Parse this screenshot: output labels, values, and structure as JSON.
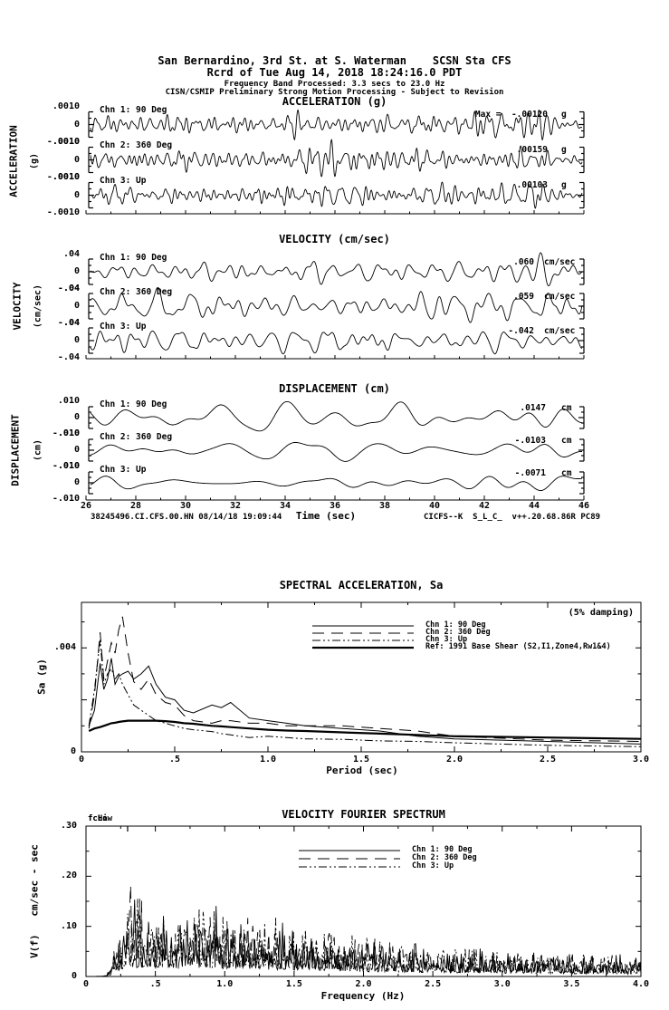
{
  "header": {
    "line1": "San Bernardino, 3rd St. at S. Waterman    SCSN Sta CFS",
    "line2": "Rcrd of Tue Aug 14, 2018 18:24:16.0 PDT",
    "line3": "Frequency Band Processed: 3.3 secs to 23.0 Hz",
    "line4": "CISN/CSMIP Preliminary Strong Motion Processing - Subject to Revision"
  },
  "time_history": {
    "panels": [
      {
        "title": "ACCELERATION (g)",
        "side_label": "ACCELERATION",
        "side_units": "(g)",
        "yticks": {
          "top": ".0010",
          "zero": "0",
          "bottom": "-.0010"
        },
        "channels": [
          {
            "label": "Chn 1: 90 Deg",
            "max": "Max =  -.00120",
            "units": "g"
          },
          {
            "label": "Chn 2: 360 Deg",
            "max": ".00159",
            "units": "g"
          },
          {
            "label": "Chn 3: Up",
            "max": ".00103",
            "units": "g"
          }
        ]
      },
      {
        "title": "VELOCITY (cm/sec)",
        "side_label": "VELOCITY",
        "side_units": "(cm/sec)",
        "yticks": {
          "top": ".04",
          "zero": "0",
          "bottom": "-.04"
        },
        "channels": [
          {
            "label": "Chn 1: 90 Deg",
            "max": ".060",
            "units": "cm/sec"
          },
          {
            "label": "Chn 2: 360 Deg",
            "max": ".059",
            "units": "cm/sec"
          },
          {
            "label": "Chn 3: Up",
            "max": "-.042",
            "units": "cm/sec"
          }
        ]
      },
      {
        "title": "DISPLACEMENT (cm)",
        "side_label": "DISPLACEMENT",
        "side_units": "(cm)",
        "yticks": {
          "top": ".010",
          "zero": "0",
          "bottom": "-.010"
        },
        "channels": [
          {
            "label": "Chn 1: 90 Deg",
            "max": ".0147",
            "units": "cm"
          },
          {
            "label": "Chn 2: 360 Deg",
            "max": "-.0103",
            "units": "cm"
          },
          {
            "label": "Chn 3: Up",
            "max": "-.0071",
            "units": "cm"
          }
        ]
      }
    ],
    "xticks": [
      "26",
      "28",
      "30",
      "32",
      "34",
      "36",
      "38",
      "40",
      "42",
      "44",
      "46"
    ],
    "xlabel": "Time (sec)",
    "footer_left": "38245496.CI.CFS.00.HN 08/14/18 19:09:44",
    "footer_right": "CICFS--K  S_L_C_  v++.20.68.86R PC89"
  },
  "sa_plot": {
    "title": "SPECTRAL ACCELERATION, Sa",
    "damping": "(5% damping)",
    "ylabel": "Sa (g)",
    "xlabel": "Period (sec)",
    "yticks": [
      {
        "v": 0.004,
        "label": ".004"
      },
      {
        "v": 0,
        "label": "0"
      }
    ],
    "xticks": [
      {
        "v": 0,
        "label": "0"
      },
      {
        "v": 0.5,
        "label": ".5"
      },
      {
        "v": 1,
        "label": "1.0"
      },
      {
        "v": 1.5,
        "label": "1.5"
      },
      {
        "v": 2,
        "label": "2.0"
      },
      {
        "v": 2.5,
        "label": "2.5"
      },
      {
        "v": 3,
        "label": "3.0"
      }
    ],
    "legend": [
      "Chn 1: 90 Deg",
      "Chn 2: 360 Deg",
      "Chn 3: Up",
      "Ref: 1991 Base Shear (S2,I1,Zone4,Rw1&4)"
    ]
  },
  "fourier_plot": {
    "title": "VELOCITY FOURIER SPECTRUM",
    "ylabel": "V(f)   cm/sec - sec",
    "xlabel": "Frequency (Hz)",
    "fc_labels": [
      "fcLow",
      "fcHi"
    ],
    "yticks": [
      {
        "v": 0.3,
        "label": ".30"
      },
      {
        "v": 0.2,
        "label": ".20"
      },
      {
        "v": 0.1,
        "label": ".10"
      },
      {
        "v": 0,
        "label": "0"
      }
    ],
    "xticks": [
      {
        "v": 0,
        "label": "0"
      },
      {
        "v": 0.5,
        "label": ".5"
      },
      {
        "v": 1,
        "label": "1.0"
      },
      {
        "v": 1.5,
        "label": "1.5"
      },
      {
        "v": 2,
        "label": "2.0"
      },
      {
        "v": 2.5,
        "label": "2.5"
      },
      {
        "v": 3,
        "label": "3.0"
      },
      {
        "v": 3.5,
        "label": "3.5"
      },
      {
        "v": 4,
        "label": "4.0"
      }
    ],
    "legend": [
      "Chn 1: 90 Deg",
      "Chn 2: 360 Deg",
      "Chn 3: Up"
    ]
  },
  "chart_data": [
    {
      "id": "acceleration_time_history",
      "type": "line",
      "title": "ACCELERATION (g)",
      "xlabel": "Time (sec)",
      "xlim": [
        26,
        46
      ],
      "trace_ylim": [
        -0.001,
        0.001
      ],
      "units": "g",
      "channels": [
        {
          "name": "Chn 1: 90 Deg",
          "peak": -0.0012
        },
        {
          "name": "Chn 2: 360 Deg",
          "peak": 0.00159
        },
        {
          "name": "Chn 3: Up",
          "peak": 0.00103
        }
      ],
      "note": "band-limited noise-like traces; labeled peak values read from plot"
    },
    {
      "id": "velocity_time_history",
      "type": "line",
      "title": "VELOCITY (cm/sec)",
      "xlabel": "Time (sec)",
      "xlim": [
        26,
        46
      ],
      "trace_ylim": [
        -0.04,
        0.04
      ],
      "units": "cm/sec",
      "channels": [
        {
          "name": "Chn 1: 90 Deg",
          "peak": 0.06
        },
        {
          "name": "Chn 2: 360 Deg",
          "peak": 0.059
        },
        {
          "name": "Chn 3: Up",
          "peak": -0.042
        }
      ],
      "note": "band-limited noise-like traces; labeled peak values read from plot"
    },
    {
      "id": "displacement_time_history",
      "type": "line",
      "title": "DISPLACEMENT (cm)",
      "xlabel": "Time (sec)",
      "xlim": [
        26,
        46
      ],
      "trace_ylim": [
        -0.01,
        0.01
      ],
      "units": "cm",
      "channels": [
        {
          "name": "Chn 1: 90 Deg",
          "peak": 0.0147
        },
        {
          "name": "Chn 2: 360 Deg",
          "peak": -0.0103
        },
        {
          "name": "Chn 3: Up",
          "peak": -0.0071
        }
      ],
      "note": "smooth low-frequency traces; labeled peak values read from plot"
    },
    {
      "id": "spectral_acceleration",
      "type": "line",
      "title": "SPECTRAL ACCELERATION, Sa",
      "xlabel": "Period (sec)",
      "ylabel": "Sa (g)",
      "xlim": [
        0,
        3
      ],
      "ylim": [
        0,
        0.00575
      ],
      "damping": "5%",
      "x": [
        0.04,
        0.07,
        0.1,
        0.12,
        0.14,
        0.16,
        0.18,
        0.2,
        0.22,
        0.25,
        0.28,
        0.32,
        0.36,
        0.4,
        0.45,
        0.5,
        0.55,
        0.6,
        0.7,
        0.75,
        0.8,
        0.9,
        1.0,
        1.1,
        1.2,
        1.4,
        1.6,
        1.8,
        2.0,
        2.5,
        3.0
      ],
      "series": [
        {
          "name": "Chn 1: 90 Deg",
          "values": [
            0.001,
            0.0016,
            0.0034,
            0.0024,
            0.0028,
            0.0036,
            0.0026,
            0.0029,
            0.003,
            0.0031,
            0.0028,
            0.003,
            0.0033,
            0.0026,
            0.0021,
            0.002,
            0.0016,
            0.0015,
            0.0018,
            0.0017,
            0.0019,
            0.0013,
            0.0012,
            0.0011,
            0.001,
            0.0009,
            0.0008,
            0.0006,
            0.0005,
            0.0004,
            0.0003
          ]
        },
        {
          "name": "Chn 2: 360 Deg",
          "values": [
            0.0009,
            0.0022,
            0.0046,
            0.0028,
            0.0035,
            0.0042,
            0.0038,
            0.0047,
            0.0052,
            0.0038,
            0.0027,
            0.0024,
            0.0028,
            0.0022,
            0.0019,
            0.0018,
            0.0014,
            0.0012,
            0.0011,
            0.0012,
            0.0012,
            0.0011,
            0.0011,
            0.001,
            0.001,
            0.001,
            0.0009,
            0.0008,
            0.0006,
            0.00045,
            0.0004
          ]
        },
        {
          "name": "Chn 3: Up",
          "values": [
            0.001,
            0.0024,
            0.0043,
            0.0026,
            0.003,
            0.0032,
            0.0028,
            0.003,
            0.0026,
            0.0022,
            0.0018,
            0.0016,
            0.0014,
            0.0012,
            0.0011,
            0.001,
            0.0009,
            0.00085,
            0.00078,
            0.0007,
            0.00065,
            0.00055,
            0.0006,
            0.00055,
            0.0005,
            0.00048,
            0.00042,
            0.0004,
            0.00035,
            0.00025,
            0.0002
          ]
        },
        {
          "name": "Ref: 1991 Base Shear (S2,I1,Zone4,Rw1&4)",
          "values": [
            0.0008,
            0.0009,
            0.00095,
            0.001,
            0.00105,
            0.0011,
            0.00112,
            0.00115,
            0.00117,
            0.0012,
            0.0012,
            0.0012,
            0.0012,
            0.0012,
            0.00118,
            0.00115,
            0.0011,
            0.00108,
            0.001,
            0.00098,
            0.00095,
            0.0009,
            0.00085,
            0.00082,
            0.0008,
            0.00075,
            0.0007,
            0.00065,
            0.0006,
            0.00055,
            0.0005
          ]
        }
      ]
    },
    {
      "id": "velocity_fourier_spectrum",
      "type": "line",
      "title": "VELOCITY FOURIER SPECTRUM",
      "xlabel": "Frequency (Hz)",
      "ylabel": "V(f) cm/sec - sec",
      "xlim": [
        0,
        4
      ],
      "ylim": [
        0,
        0.3
      ],
      "series": [
        "Chn 1: 90 Deg",
        "Chn 2: 360 Deg",
        "Chn 3: Up"
      ],
      "envelope": [
        [
          0,
          0
        ],
        [
          0.15,
          0.004
        ],
        [
          0.22,
          0.05
        ],
        [
          0.3,
          0.1
        ],
        [
          0.4,
          0.1
        ],
        [
          0.6,
          0.09
        ],
        [
          0.9,
          0.085
        ],
        [
          1.2,
          0.08
        ],
        [
          1.5,
          0.07
        ],
        [
          1.8,
          0.06
        ],
        [
          2.1,
          0.05
        ],
        [
          2.5,
          0.042
        ],
        [
          3.0,
          0.034
        ],
        [
          3.5,
          0.03
        ],
        [
          4.0,
          0.026
        ]
      ],
      "spikes": [
        {
          "series": "Chn 2: 360 Deg",
          "f": 0.32,
          "v": 0.21
        },
        {
          "series": "Chn 1: 90 Deg",
          "f": 0.35,
          "v": 0.16
        },
        {
          "series": "Chn 3: Up",
          "f": 0.3,
          "v": 0.13
        }
      ],
      "note": "jagged noise-like spectra; envelope breakpoints estimated from plot"
    }
  ]
}
